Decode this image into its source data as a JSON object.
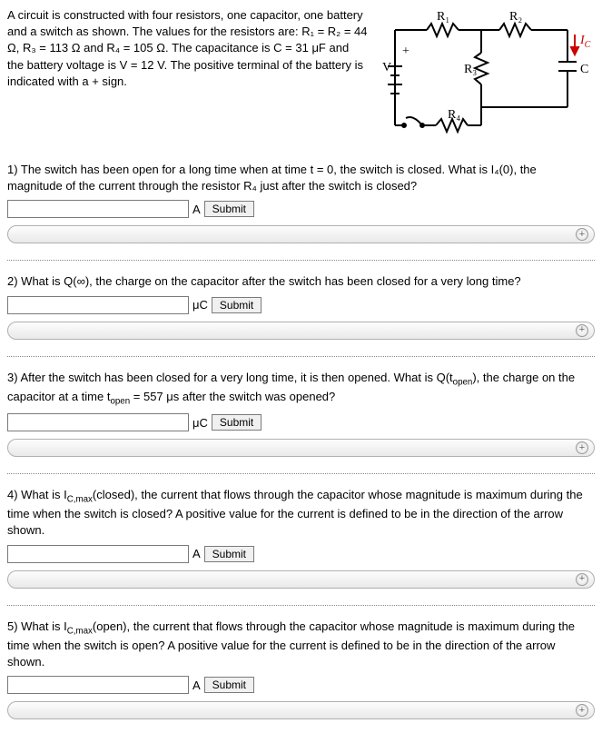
{
  "intro": "A circuit is constructed with four resistors, one capacitor, one battery and a switch as shown. The values for the resistors are: R₁ = R₂ = 44 Ω, R₃ = 113 Ω and R₄ = 105 Ω. The capacitance is C = 31 μF and the battery voltage is V = 12 V. The positive terminal of the battery is indicated with a + sign.",
  "circuit": {
    "labels": {
      "V": "V",
      "R1": "R₁",
      "R2": "R₂",
      "R3": "R₃",
      "R4": "R₄",
      "Ic": "I",
      "IcSub": "C",
      "C": "C",
      "plus": "+"
    },
    "colors": {
      "wire": "#000000",
      "ic_arrow": "#cc0000"
    }
  },
  "questions": [
    {
      "text": "1) The switch has been open for a long time when at time t = 0, the switch is closed. What is I₄(0), the magnitude of the current through the resistor R₄ just after the switch is closed?",
      "unit": "A",
      "submit": "Submit"
    },
    {
      "text": "2) What is Q(∞), the charge on the capacitor after the switch has been closed for a very long time?",
      "unit": "μC",
      "submit": "Submit"
    },
    {
      "text_html": "3) After the switch has been closed for a very long time, it is then opened. What is Q(t<sub>open</sub>), the charge on the capacitor at a time t<sub>open</sub> = 557 μs after the switch was opened?",
      "unit": "μC",
      "submit": "Submit"
    },
    {
      "text_html": "4) What is I<sub>C,max</sub>(closed), the current that flows through the capacitor whose magnitude is maximum during the time when the switch is closed? A positive value for the current is defined to be in the direction of the arrow shown.",
      "unit": "A",
      "submit": "Submit"
    },
    {
      "text_html": "5) What is I<sub>C,max</sub>(open), the current that flows through the capacitor whose magnitude is maximum during the time when the switch is open? A positive value for the current is defined to be in the direction of the arrow shown.",
      "unit": "A",
      "submit": "Submit"
    }
  ]
}
